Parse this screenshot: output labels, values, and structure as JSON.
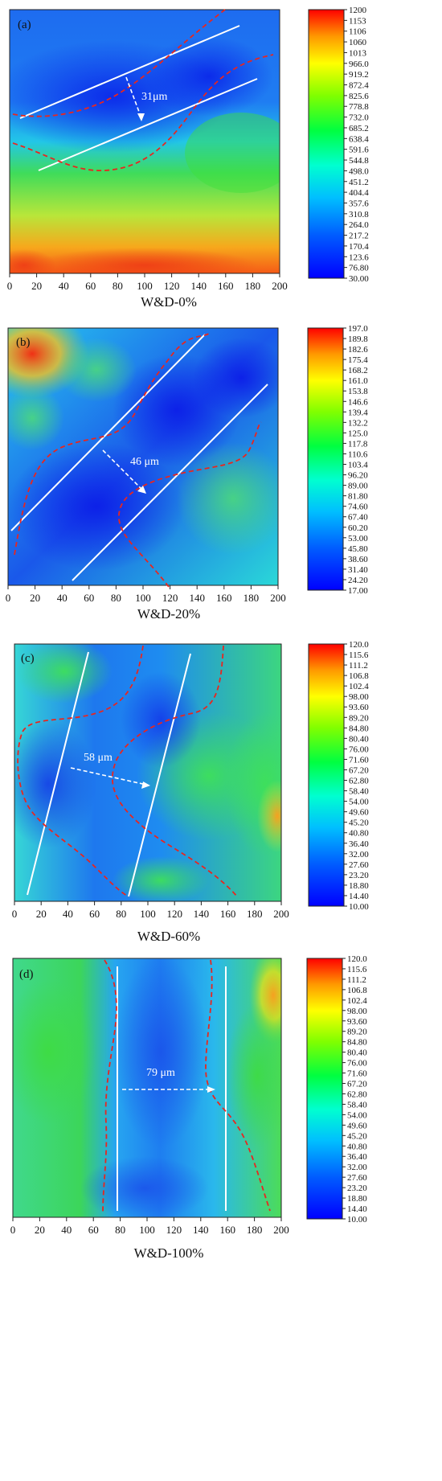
{
  "figure": {
    "panels": [
      {
        "id": "a",
        "panel_label": "(a)",
        "xlabel": "W&D-0%",
        "xticks": [
          "0",
          "20",
          "40",
          "60",
          "80",
          "100",
          "120",
          "140",
          "160",
          "180",
          "200"
        ],
        "colorbar_ticks": [
          "1200",
          "1153",
          "1106",
          "1060",
          "1013",
          "966.0",
          "919.2",
          "872.4",
          "825.6",
          "778.8",
          "732.0",
          "685.2",
          "638.4",
          "591.6",
          "544.8",
          "498.0",
          "451.2",
          "404.4",
          "357.6",
          "310.8",
          "264.0",
          "217.2",
          "170.4",
          "123.6",
          "76.80",
          "30.00"
        ],
        "annotation": "31μm"
      },
      {
        "id": "b",
        "panel_label": "(b)",
        "xlabel": "W&D-20%",
        "xticks": [
          "0",
          "20",
          "40",
          "60",
          "80",
          "100",
          "120",
          "140",
          "160",
          "180",
          "200"
        ],
        "colorbar_ticks": [
          "197.0",
          "189.8",
          "182.6",
          "175.4",
          "168.2",
          "161.0",
          "153.8",
          "146.6",
          "139.4",
          "132.2",
          "125.0",
          "117.8",
          "110.6",
          "103.4",
          "96.20",
          "89.00",
          "81.80",
          "74.60",
          "67.40",
          "60.20",
          "53.00",
          "45.80",
          "38.60",
          "31.40",
          "24.20",
          "17.00"
        ],
        "annotation": "46 μm"
      },
      {
        "id": "c",
        "panel_label": "(c)",
        "xlabel": "W&D-60%",
        "xticks": [
          "0",
          "20",
          "40",
          "60",
          "80",
          "100",
          "120",
          "140",
          "160",
          "180",
          "200"
        ],
        "colorbar_ticks": [
          "120.0",
          "115.6",
          "111.2",
          "106.8",
          "102.4",
          "98.00",
          "93.60",
          "89.20",
          "84.80",
          "80.40",
          "76.00",
          "71.60",
          "67.20",
          "62.80",
          "58.40",
          "54.00",
          "49.60",
          "45.20",
          "40.80",
          "36.40",
          "32.00",
          "27.60",
          "23.20",
          "18.80",
          "14.40",
          "10.00"
        ],
        "annotation": "58 μm"
      },
      {
        "id": "d",
        "panel_label": "(d)",
        "xlabel": "W&D-100%",
        "xticks": [
          "0",
          "20",
          "40",
          "60",
          "80",
          "100",
          "120",
          "140",
          "160",
          "180",
          "200"
        ],
        "colorbar_ticks": [
          "120.0",
          "115.6",
          "111.2",
          "106.8",
          "102.4",
          "98.00",
          "93.60",
          "89.20",
          "84.80",
          "80.40",
          "76.00",
          "71.60",
          "67.20",
          "62.80",
          "58.40",
          "54.00",
          "49.60",
          "45.20",
          "40.80",
          "36.40",
          "32.00",
          "27.60",
          "23.20",
          "18.80",
          "14.40",
          "10.00"
        ],
        "annotation": "79 μm"
      }
    ]
  },
  "chart_data": [
    {
      "type": "heatmap",
      "title": "(a)",
      "xlabel": "W&D-0%",
      "xlim": [
        0,
        200
      ],
      "colorbar_range": [
        30.0,
        1200
      ],
      "colormap": "jet",
      "annotations": [
        {
          "text": "31μm",
          "type": "distance"
        }
      ]
    },
    {
      "type": "heatmap",
      "title": "(b)",
      "xlabel": "W&D-20%",
      "xlim": [
        0,
        200
      ],
      "colorbar_range": [
        17.0,
        197.0
      ],
      "colormap": "jet",
      "annotations": [
        {
          "text": "46 μm",
          "type": "distance"
        }
      ]
    },
    {
      "type": "heatmap",
      "title": "(c)",
      "xlabel": "W&D-60%",
      "xlim": [
        0,
        200
      ],
      "colorbar_range": [
        10.0,
        120.0
      ],
      "colormap": "jet",
      "annotations": [
        {
          "text": "58 μm",
          "type": "distance"
        }
      ]
    },
    {
      "type": "heatmap",
      "title": "(d)",
      "xlabel": "W&D-100%",
      "xlim": [
        0,
        200
      ],
      "colorbar_range": [
        10.0,
        120.0
      ],
      "colormap": "jet",
      "annotations": [
        {
          "text": "79 μm",
          "type": "distance"
        }
      ]
    }
  ]
}
